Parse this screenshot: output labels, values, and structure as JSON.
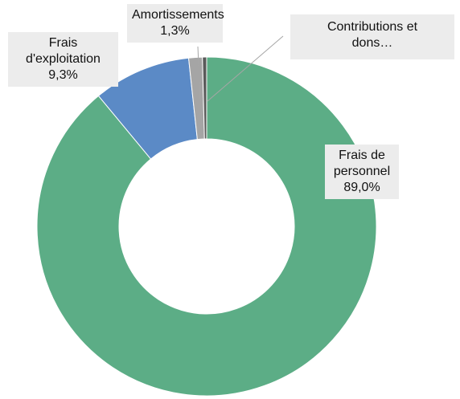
{
  "chart_data": {
    "type": "pie",
    "categories": [
      "Frais de personnel",
      "Frais d'exploitation",
      "Amortissements",
      "Contributions et dons…"
    ],
    "values": [
      89.0,
      9.3,
      1.3,
      0.4
    ],
    "value_labels": [
      "89,0%",
      "9,3%",
      "1,3%",
      null
    ],
    "colors": [
      "#5cad86",
      "#5b8ac6",
      "#a5a5a5",
      "#5a5a5a"
    ],
    "donut": true
  }
}
